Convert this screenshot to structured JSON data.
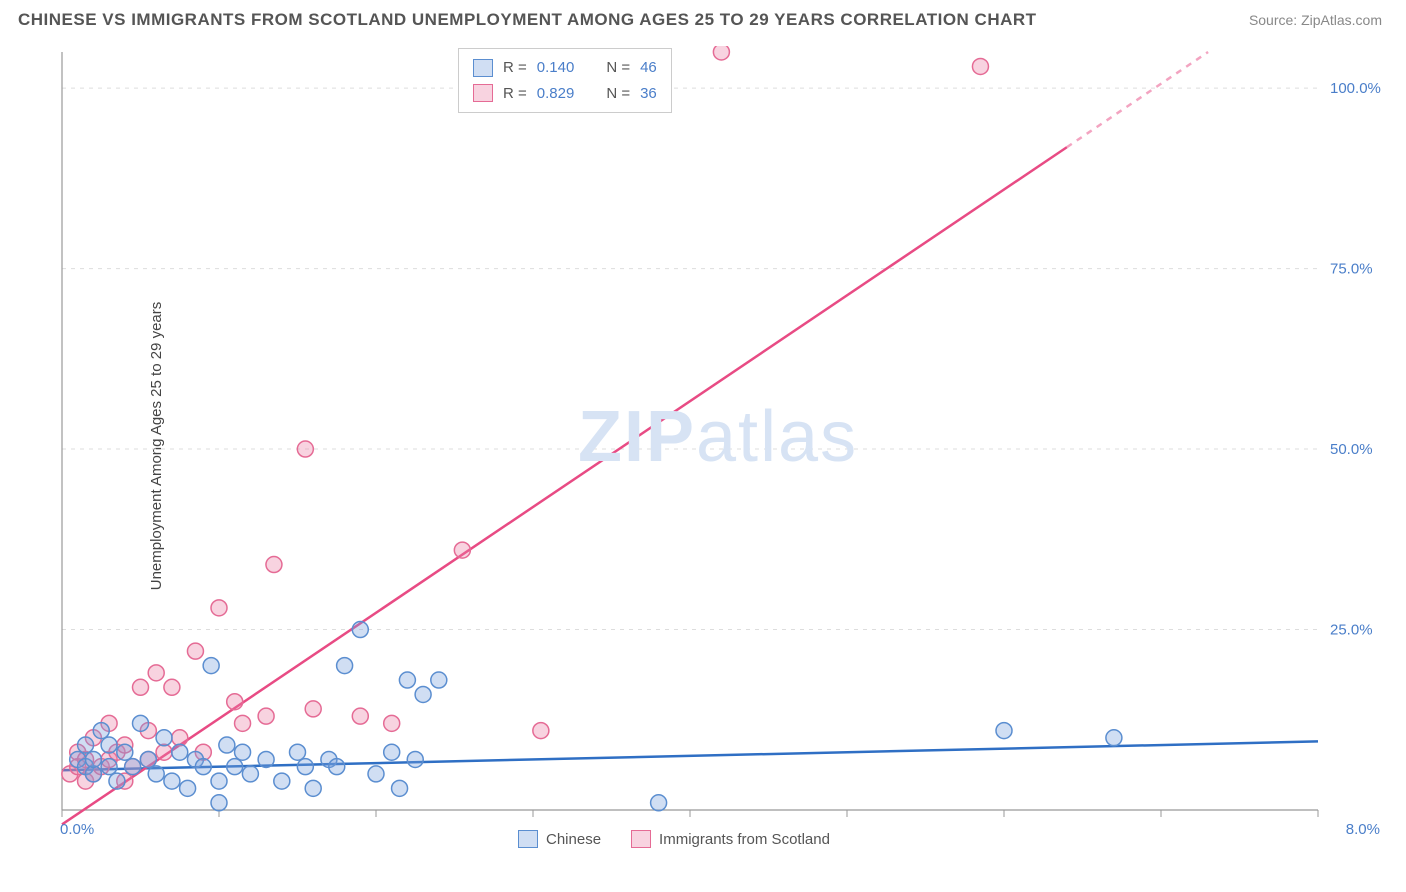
{
  "header": {
    "title": "CHINESE VS IMMIGRANTS FROM SCOTLAND UNEMPLOYMENT AMONG AGES 25 TO 29 YEARS CORRELATION CHART",
    "source": "Source: ZipAtlas.com"
  },
  "ylabel": "Unemployment Among Ages 25 to 29 years",
  "watermark": {
    "text1": "ZIP",
    "text2": "atlas",
    "color": "#d7e3f4"
  },
  "chart": {
    "type": "scatter",
    "xlim": [
      0,
      8
    ],
    "ylim": [
      0,
      105
    ],
    "x_ticks": [
      {
        "val": 0,
        "label": "0.0%"
      },
      {
        "val": 8,
        "label": "8.0%"
      }
    ],
    "y_ticks": [
      {
        "val": 25,
        "label": "25.0%"
      },
      {
        "val": 50,
        "label": "50.0%"
      },
      {
        "val": 75,
        "label": "75.0%"
      },
      {
        "val": 100,
        "label": "100.0%"
      }
    ],
    "y_grid": [
      25,
      50,
      75,
      100
    ],
    "x_grid_minor": [
      0,
      1,
      2,
      3,
      4,
      5,
      6,
      7,
      8
    ],
    "background_color": "#ffffff",
    "grid_color": "#dddddd",
    "axis_color": "#999999",
    "marker_radius": 8,
    "marker_stroke_width": 1.5,
    "line_width": 2.5,
    "series": [
      {
        "name": "Chinese",
        "color_fill": "rgba(120,160,220,0.35)",
        "color_stroke": "#5b8ed0",
        "line_color": "#2f6fc4",
        "R": "0.140",
        "N": "46",
        "regression": {
          "x1": 0,
          "y1": 5.5,
          "x2": 8,
          "y2": 9.5
        },
        "points": [
          [
            0.1,
            7
          ],
          [
            0.15,
            6
          ],
          [
            0.15,
            9
          ],
          [
            0.2,
            5
          ],
          [
            0.2,
            7
          ],
          [
            0.25,
            11
          ],
          [
            0.3,
            6
          ],
          [
            0.3,
            9
          ],
          [
            0.35,
            4
          ],
          [
            0.4,
            8
          ],
          [
            0.45,
            6
          ],
          [
            0.5,
            12
          ],
          [
            0.55,
            7
          ],
          [
            0.6,
            5
          ],
          [
            0.65,
            10
          ],
          [
            0.7,
            4
          ],
          [
            0.75,
            8
          ],
          [
            0.8,
            3
          ],
          [
            0.85,
            7
          ],
          [
            0.9,
            6
          ],
          [
            0.95,
            20
          ],
          [
            1.0,
            4
          ],
          [
            1.05,
            9
          ],
          [
            1.1,
            6
          ],
          [
            1.15,
            8
          ],
          [
            1.2,
            5
          ],
          [
            1.3,
            7
          ],
          [
            1.4,
            4
          ],
          [
            1.5,
            8
          ],
          [
            1.55,
            6
          ],
          [
            1.6,
            3
          ],
          [
            1.7,
            7
          ],
          [
            1.75,
            6
          ],
          [
            1.8,
            20
          ],
          [
            1.9,
            25
          ],
          [
            2.0,
            5
          ],
          [
            2.1,
            8
          ],
          [
            2.15,
            3
          ],
          [
            2.2,
            18
          ],
          [
            2.25,
            7
          ],
          [
            2.3,
            16
          ],
          [
            2.4,
            18
          ],
          [
            3.8,
            1
          ],
          [
            6.0,
            11
          ],
          [
            6.7,
            10
          ],
          [
            1.0,
            1
          ]
        ]
      },
      {
        "name": "Immigrants from Scotland",
        "color_fill": "rgba(235,130,165,0.35)",
        "color_stroke": "#e56b95",
        "line_color": "#e84b84",
        "R": "0.829",
        "N": "36",
        "regression": {
          "x1": 0,
          "y1": -2,
          "x2": 7.3,
          "y2": 105
        },
        "regression_dash_after_x": 6.4,
        "points": [
          [
            0.05,
            5
          ],
          [
            0.1,
            6
          ],
          [
            0.1,
            8
          ],
          [
            0.15,
            4
          ],
          [
            0.15,
            7
          ],
          [
            0.2,
            5
          ],
          [
            0.2,
            10
          ],
          [
            0.25,
            6
          ],
          [
            0.3,
            7
          ],
          [
            0.3,
            12
          ],
          [
            0.35,
            8
          ],
          [
            0.4,
            4
          ],
          [
            0.4,
            9
          ],
          [
            0.45,
            6
          ],
          [
            0.5,
            17
          ],
          [
            0.55,
            7
          ],
          [
            0.55,
            11
          ],
          [
            0.6,
            19
          ],
          [
            0.65,
            8
          ],
          [
            0.7,
            17
          ],
          [
            0.75,
            10
          ],
          [
            0.85,
            22
          ],
          [
            0.9,
            8
          ],
          [
            1.0,
            28
          ],
          [
            1.1,
            15
          ],
          [
            1.15,
            12
          ],
          [
            1.3,
            13
          ],
          [
            1.35,
            34
          ],
          [
            1.55,
            50
          ],
          [
            1.6,
            14
          ],
          [
            1.9,
            13
          ],
          [
            2.1,
            12
          ],
          [
            2.55,
            36
          ],
          [
            3.05,
            11
          ],
          [
            4.2,
            105
          ],
          [
            5.85,
            103
          ]
        ]
      }
    ]
  },
  "legend_top": {
    "rows": [
      {
        "series_idx": 0,
        "R_label": "R =",
        "N_label": "N ="
      },
      {
        "series_idx": 1,
        "R_label": "R =",
        "N_label": "N ="
      }
    ]
  },
  "legend_bottom": {
    "items": [
      {
        "series_idx": 0
      },
      {
        "series_idx": 1
      }
    ]
  }
}
